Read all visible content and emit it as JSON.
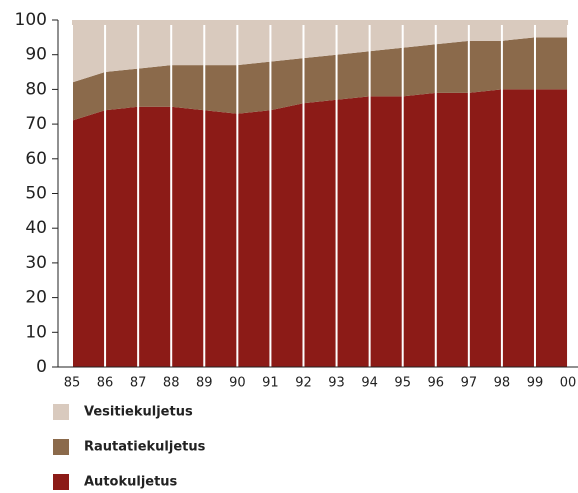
{
  "chart_data": {
    "type": "stacked-area",
    "categories": [
      "85",
      "86",
      "87",
      "88",
      "89",
      "90",
      "91",
      "92",
      "93",
      "94",
      "95",
      "96",
      "97",
      "98",
      "99",
      "00"
    ],
    "series": [
      {
        "name": "Autokuljetus",
        "color": "#8c1b17",
        "values": [
          71,
          74,
          75,
          75,
          74,
          73,
          74,
          76,
          77,
          78,
          78,
          79,
          79,
          80,
          80,
          80
        ]
      },
      {
        "name": "Rautatiekuljetus",
        "color": "#8b6a4b",
        "values": [
          11,
          11,
          11,
          12,
          13,
          14,
          14,
          13,
          13,
          13,
          14,
          14,
          15,
          14,
          15,
          15
        ]
      },
      {
        "name": "Vesitiekuljetus",
        "color": "#d9cabe",
        "values": [
          18,
          15,
          14,
          13,
          13,
          13,
          12,
          11,
          10,
          9,
          8,
          7,
          6,
          6,
          5,
          5
        ]
      }
    ],
    "ylim": [
      0,
      100
    ],
    "yticks": [
      0,
      10,
      20,
      30,
      40,
      50,
      60,
      70,
      80,
      90,
      100
    ],
    "grid": true
  }
}
